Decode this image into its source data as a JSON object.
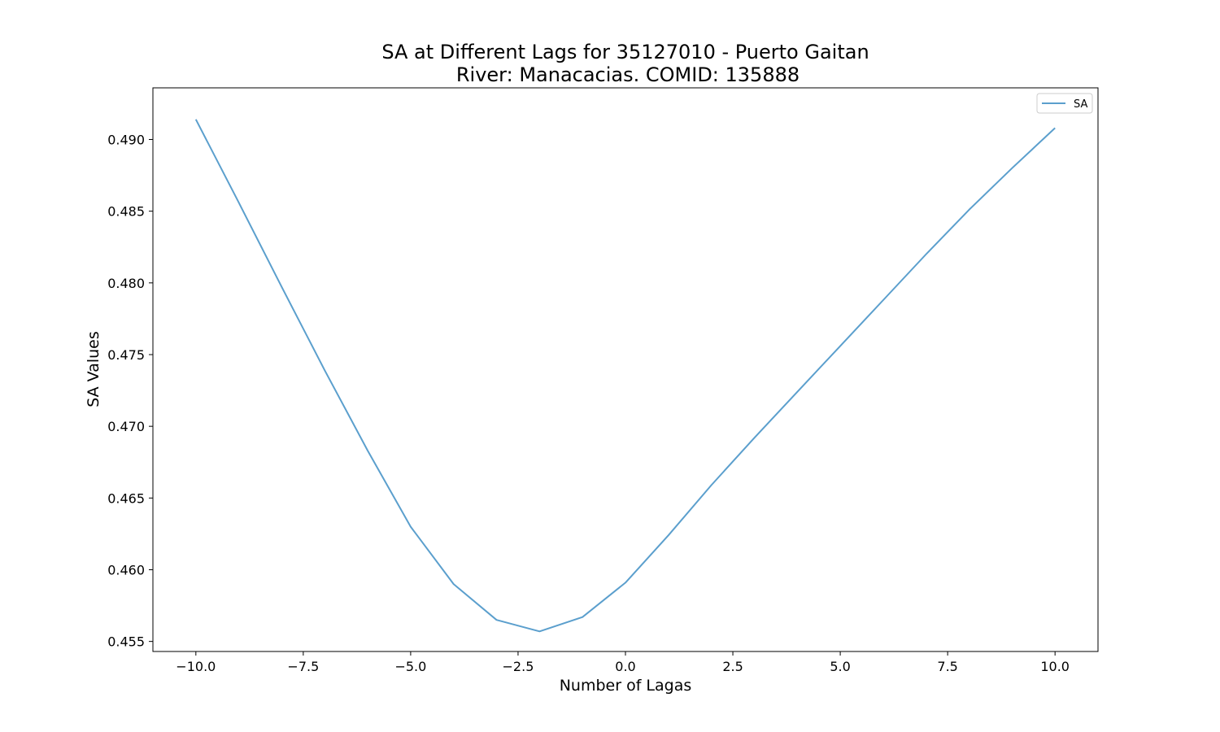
{
  "chart_data": {
    "type": "line",
    "title_line1": "SA at Different Lags for 35127010 - Puerto Gaitan",
    "title_line2": "River: Manacacias. COMID: 135888",
    "xlabel": "Number of Lagas",
    "ylabel": "SA Values",
    "xlim": [
      -11,
      11
    ],
    "ylim": [
      0.4543,
      0.4936
    ],
    "xticks": [
      -10.0,
      -7.5,
      -5.0,
      -2.5,
      0.0,
      2.5,
      5.0,
      7.5,
      10.0
    ],
    "xtick_labels": [
      "−10.0",
      "−7.5",
      "−5.0",
      "−2.5",
      "0.0",
      "2.5",
      "5.0",
      "7.5",
      "10.0"
    ],
    "yticks": [
      0.455,
      0.46,
      0.465,
      0.47,
      0.475,
      0.48,
      0.485,
      0.49
    ],
    "ytick_labels": [
      "0.455",
      "0.460",
      "0.465",
      "0.470",
      "0.475",
      "0.480",
      "0.485",
      "0.490"
    ],
    "grid": false,
    "legend_position": "top-right",
    "series": [
      {
        "name": "SA",
        "color": "#5b9fcd",
        "x": [
          -10,
          -9,
          -8,
          -7,
          -6,
          -5,
          -4,
          -3,
          -2,
          -1,
          0,
          1,
          2,
          3,
          4,
          5,
          6,
          7,
          8,
          9,
          10
        ],
        "y": [
          0.4914,
          0.4856,
          0.4797,
          0.4739,
          0.4683,
          0.463,
          0.459,
          0.4565,
          0.4557,
          0.4567,
          0.4591,
          0.4624,
          0.4659,
          0.4692,
          0.4724,
          0.4756,
          0.4788,
          0.482,
          0.4851,
          0.488,
          0.4908
        ]
      }
    ]
  }
}
